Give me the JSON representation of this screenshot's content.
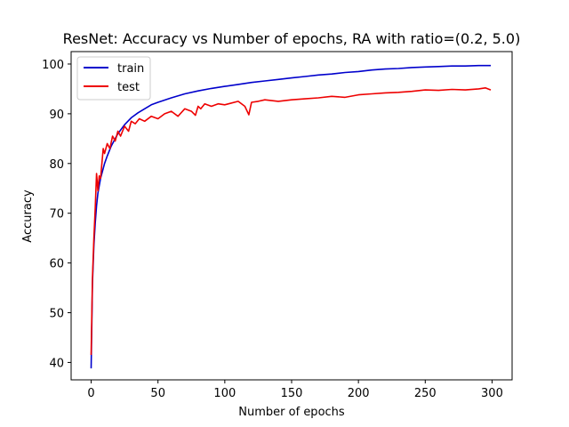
{
  "chart_data": {
    "type": "line",
    "title": "ResNet: Accuracy vs Number of epochs, RA with ratio=(0.2, 5.0)",
    "xlabel": "Number of epochs",
    "ylabel": "Accuracy",
    "xlim": [
      -15,
      315
    ],
    "ylim": [
      36.5,
      102.5
    ],
    "xticks": [
      0,
      50,
      100,
      150,
      200,
      250,
      300
    ],
    "yticks": [
      40,
      50,
      60,
      70,
      80,
      90,
      100
    ],
    "grid": false,
    "legend_position": "top-left",
    "series": [
      {
        "name": "train",
        "color": "#0000cc",
        "x": [
          0,
          1,
          2,
          3,
          4,
          5,
          6,
          7,
          8,
          10,
          12,
          15,
          18,
          20,
          25,
          30,
          35,
          40,
          45,
          50,
          60,
          70,
          80,
          90,
          100,
          110,
          120,
          130,
          140,
          150,
          160,
          170,
          180,
          190,
          200,
          210,
          220,
          230,
          240,
          250,
          260,
          270,
          280,
          290,
          299
        ],
        "values": [
          38.8,
          56.0,
          63.5,
          68.0,
          71.5,
          74.0,
          75.5,
          77.0,
          78.0,
          80.0,
          81.5,
          83.5,
          85.0,
          86.0,
          87.8,
          89.2,
          90.2,
          91.0,
          91.8,
          92.3,
          93.2,
          94.0,
          94.6,
          95.1,
          95.5,
          95.9,
          96.3,
          96.6,
          96.9,
          97.2,
          97.5,
          97.8,
          98.0,
          98.3,
          98.5,
          98.8,
          99.0,
          99.1,
          99.3,
          99.4,
          99.5,
          99.6,
          99.6,
          99.7,
          99.7
        ]
      },
      {
        "name": "test",
        "color": "#ee0000",
        "x": [
          0,
          1,
          2,
          3,
          4,
          5,
          6,
          7,
          8,
          9,
          10,
          12,
          14,
          16,
          18,
          20,
          22,
          25,
          28,
          30,
          33,
          36,
          40,
          45,
          50,
          55,
          60,
          65,
          70,
          75,
          78,
          80,
          82,
          85,
          90,
          95,
          100,
          110,
          115,
          118,
          120,
          125,
          130,
          140,
          150,
          160,
          170,
          180,
          190,
          200,
          210,
          220,
          230,
          240,
          250,
          260,
          270,
          280,
          290,
          295,
          299
        ],
        "values": [
          41.5,
          57.0,
          65.0,
          71.0,
          78.0,
          74.5,
          77.5,
          77.0,
          80.0,
          83.0,
          82.0,
          84.0,
          83.0,
          85.5,
          84.5,
          86.5,
          85.5,
          87.5,
          86.5,
          88.5,
          88.0,
          89.0,
          88.5,
          89.5,
          89.0,
          90.0,
          90.5,
          89.5,
          91.0,
          90.5,
          89.7,
          91.5,
          91.0,
          92.0,
          91.5,
          92.0,
          91.8,
          92.5,
          91.5,
          89.8,
          92.3,
          92.5,
          92.8,
          92.5,
          92.8,
          93.0,
          93.2,
          93.5,
          93.3,
          93.8,
          94.0,
          94.2,
          94.3,
          94.5,
          94.8,
          94.7,
          94.9,
          94.8,
          95.0,
          95.2,
          94.8
        ]
      }
    ]
  }
}
